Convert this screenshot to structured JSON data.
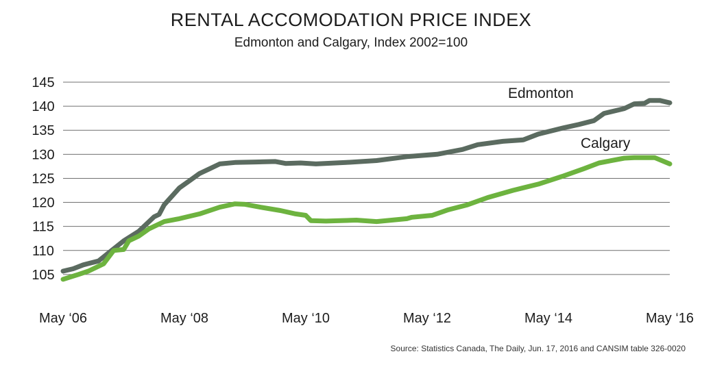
{
  "chart_data": {
    "type": "line",
    "title": "RENTAL ACCOMODATION PRICE INDEX",
    "subtitle": "Edmonton and Calgary, Index 2002=100",
    "source": "Source: Statistics Canada, The Daily, Jun. 17, 2016 and CANSIM table 326-0020",
    "ylim": [
      100,
      145
    ],
    "yticks": [
      105,
      110,
      115,
      120,
      125,
      130,
      135,
      140,
      145
    ],
    "grid": true,
    "xlim": [
      "2006-05",
      "2016-05"
    ],
    "xticks": [
      {
        "value": "2006-05",
        "label": "May ‘06"
      },
      {
        "value": "2008-05",
        "label": "May ‘08"
      },
      {
        "value": "2010-05",
        "label": "May ‘10"
      },
      {
        "value": "2012-05",
        "label": "May ‘12"
      },
      {
        "value": "2014-05",
        "label": "May ‘14"
      },
      {
        "value": "2016-05",
        "label": "May ‘16"
      }
    ],
    "series": [
      {
        "name": "Edmonton",
        "color": "#5b6b60",
        "points": [
          [
            "2006-05",
            105.7
          ],
          [
            "2006-07",
            106.2
          ],
          [
            "2006-09",
            107.0
          ],
          [
            "2006-12",
            107.8
          ],
          [
            "2007-02",
            109.5
          ],
          [
            "2007-05",
            112.0
          ],
          [
            "2007-08",
            114.0
          ],
          [
            "2007-11",
            117.0
          ],
          [
            "2007-12",
            117.5
          ],
          [
            "2008-01",
            119.5
          ],
          [
            "2008-04",
            123.0
          ],
          [
            "2008-06",
            124.5
          ],
          [
            "2008-08",
            126.0
          ],
          [
            "2008-10",
            127.0
          ],
          [
            "2008-12",
            128.0
          ],
          [
            "2009-03",
            128.3
          ],
          [
            "2009-07",
            128.4
          ],
          [
            "2009-11",
            128.5
          ],
          [
            "2010-01",
            128.1
          ],
          [
            "2010-04",
            128.2
          ],
          [
            "2010-07",
            128.0
          ],
          [
            "2011-01",
            128.3
          ],
          [
            "2011-07",
            128.7
          ],
          [
            "2012-01",
            129.5
          ],
          [
            "2012-07",
            130.0
          ],
          [
            "2012-12",
            131.0
          ],
          [
            "2013-03",
            132.0
          ],
          [
            "2013-08",
            132.7
          ],
          [
            "2013-12",
            133.0
          ],
          [
            "2014-03",
            134.2
          ],
          [
            "2014-08",
            135.5
          ],
          [
            "2014-11",
            136.2
          ],
          [
            "2015-02",
            137.0
          ],
          [
            "2015-04",
            138.5
          ],
          [
            "2015-08",
            139.5
          ],
          [
            "2015-10",
            140.5
          ],
          [
            "2015-12",
            140.6
          ],
          [
            "2016-01",
            141.2
          ],
          [
            "2016-03",
            141.2
          ],
          [
            "2016-05",
            140.7
          ]
        ]
      },
      {
        "name": "Calgary",
        "color": "#6db33f",
        "points": [
          [
            "2006-05",
            104.0
          ],
          [
            "2006-08",
            105.0
          ],
          [
            "2006-10",
            105.7
          ],
          [
            "2007-01",
            107.2
          ],
          [
            "2007-03",
            110.0
          ],
          [
            "2007-05",
            110.2
          ],
          [
            "2007-06",
            112.0
          ],
          [
            "2007-08",
            113.0
          ],
          [
            "2007-10",
            114.5
          ],
          [
            "2008-01",
            116.0
          ],
          [
            "2008-04",
            116.6
          ],
          [
            "2008-08",
            117.6
          ],
          [
            "2008-12",
            119.0
          ],
          [
            "2009-03",
            119.7
          ],
          [
            "2009-05",
            119.6
          ],
          [
            "2009-08",
            119.0
          ],
          [
            "2009-12",
            118.3
          ],
          [
            "2010-03",
            117.6
          ],
          [
            "2010-05",
            117.3
          ],
          [
            "2010-06",
            116.2
          ],
          [
            "2010-09",
            116.1
          ],
          [
            "2011-03",
            116.3
          ],
          [
            "2011-07",
            116.0
          ],
          [
            "2012-01",
            116.6
          ],
          [
            "2012-02",
            116.9
          ],
          [
            "2012-06",
            117.3
          ],
          [
            "2012-09",
            118.4
          ],
          [
            "2013-01",
            119.5
          ],
          [
            "2013-05",
            121.0
          ],
          [
            "2013-10",
            122.5
          ],
          [
            "2014-03",
            123.8
          ],
          [
            "2014-08",
            125.5
          ],
          [
            "2014-12",
            127.0
          ],
          [
            "2015-03",
            128.2
          ],
          [
            "2015-08",
            129.2
          ],
          [
            "2015-10",
            129.3
          ],
          [
            "2016-02",
            129.3
          ],
          [
            "2016-05",
            128.0
          ]
        ]
      }
    ]
  }
}
